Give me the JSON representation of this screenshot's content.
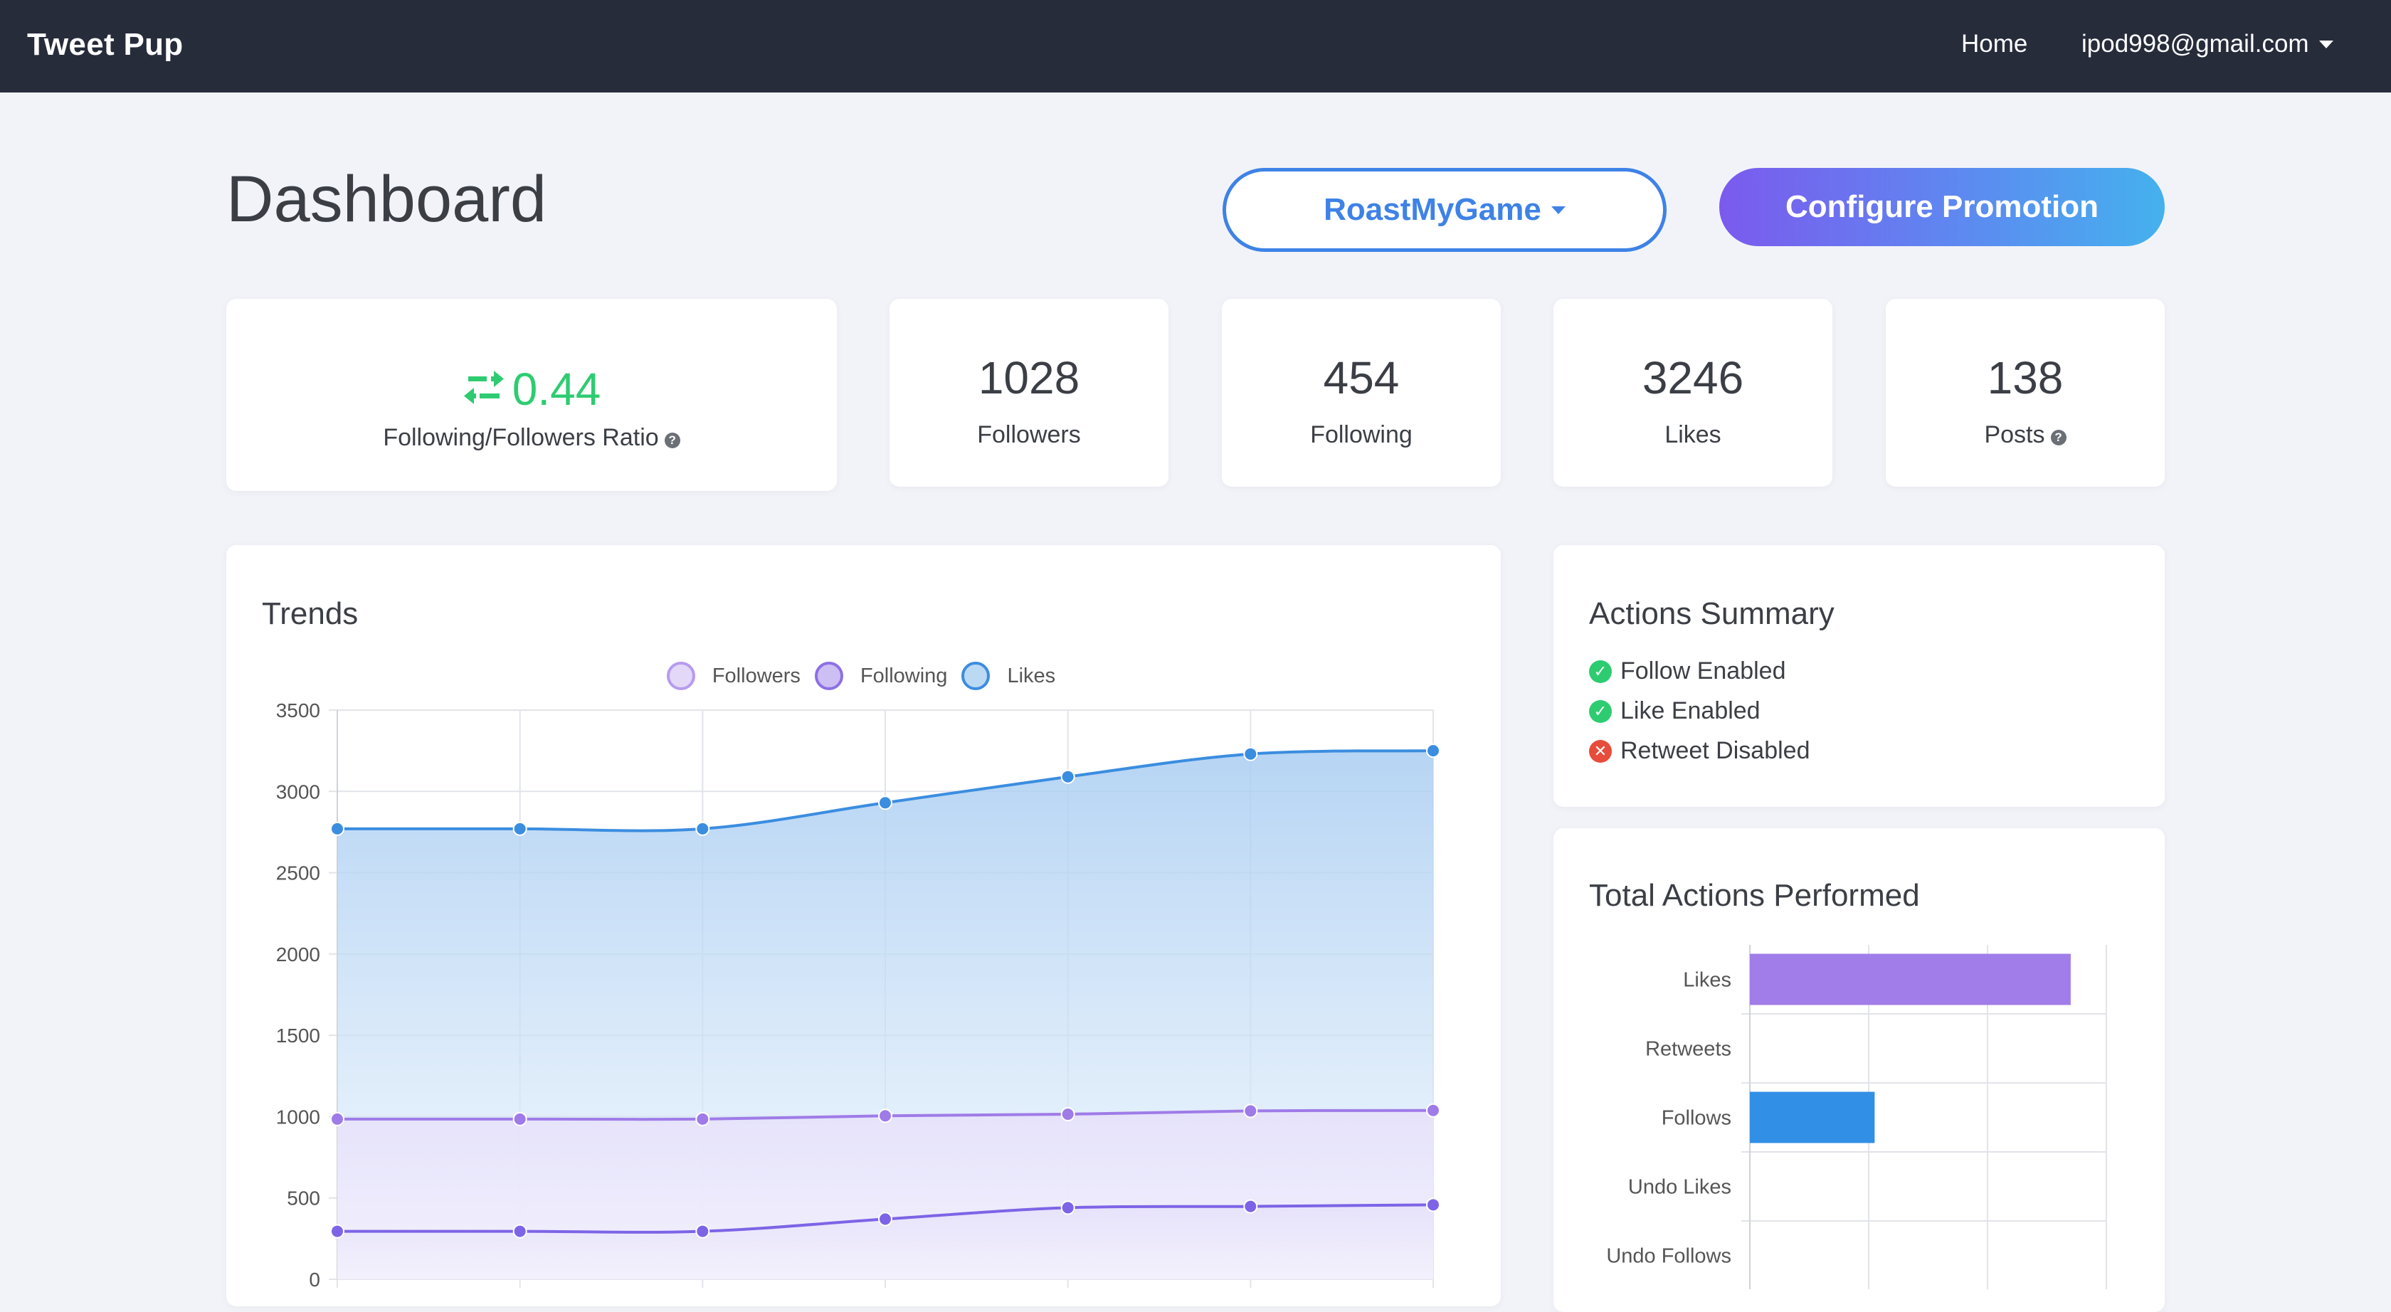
{
  "navbar": {
    "brand": "Tweet Pup",
    "home_label": "Home",
    "user_email": "ipod998@gmail.com"
  },
  "header": {
    "title": "Dashboard",
    "account_selector": "RoastMyGame",
    "configure_button": "Configure Promotion"
  },
  "stats": {
    "ratio": {
      "value": "0.44",
      "label": "Following/Followers Ratio"
    },
    "followers": {
      "value": "1028",
      "label": "Followers"
    },
    "following": {
      "value": "454",
      "label": "Following"
    },
    "likes": {
      "value": "3246",
      "label": "Likes"
    },
    "posts": {
      "value": "138",
      "label": "Posts"
    }
  },
  "trends": {
    "title": "Trends"
  },
  "actions_summary": {
    "title": "Actions Summary",
    "items": [
      {
        "label": "Follow Enabled",
        "status": "enabled"
      },
      {
        "label": "Like Enabled",
        "status": "enabled"
      },
      {
        "label": "Retweet Disabled",
        "status": "disabled"
      }
    ]
  },
  "total_actions": {
    "title": "Total Actions Performed"
  },
  "colors": {
    "accent_blue": "#3e82e6",
    "followers_purple": "#9f7be8",
    "following_purple": "#7d64e6",
    "likes_blue": "#3b8de0",
    "enabled_green": "#2ecc71",
    "disabled_red": "#e74c3c"
  },
  "chart_data": [
    {
      "type": "area",
      "title": "Trends",
      "x": [
        1,
        2,
        3,
        4,
        5,
        6,
        7
      ],
      "series": [
        {
          "name": "Followers",
          "values": [
            985,
            985,
            985,
            1005,
            1015,
            1035,
            1038
          ]
        },
        {
          "name": "Following",
          "values": [
            295,
            295,
            295,
            370,
            440,
            448,
            458
          ]
        },
        {
          "name": "Likes",
          "values": [
            2770,
            2770,
            2770,
            2930,
            3090,
            3230,
            3250
          ]
        }
      ],
      "ylim": [
        0,
        3500
      ],
      "yticks": [
        0,
        500,
        1000,
        1500,
        2000,
        2500,
        3000,
        3500
      ],
      "grid": true,
      "legend": "top"
    },
    {
      "type": "bar",
      "orientation": "horizontal",
      "title": "Total Actions Performed",
      "categories": [
        "Likes",
        "Retweets",
        "Follows",
        "Undo Likes",
        "Undo Follows"
      ],
      "values": [
        2700,
        0,
        1050,
        0,
        0
      ],
      "xlim": [
        0,
        3000
      ],
      "grid": true
    }
  ]
}
